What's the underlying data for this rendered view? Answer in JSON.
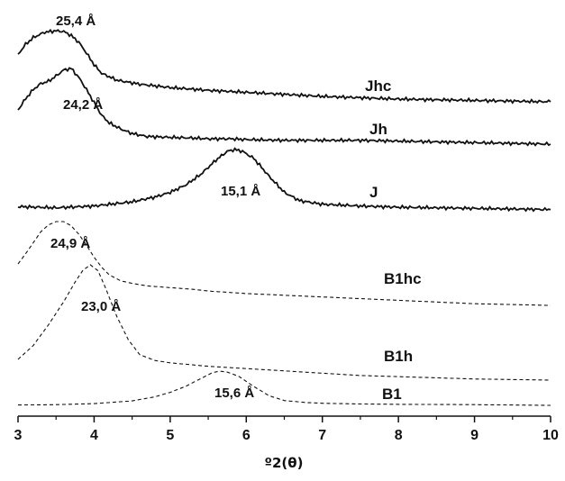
{
  "chart_data": {
    "type": "line",
    "xlabel": "º2(θ)",
    "ylabel": "",
    "xlim": [
      3,
      10
    ],
    "x_ticks": [
      3,
      4,
      5,
      6,
      7,
      8,
      9,
      10
    ],
    "y_ticks": [],
    "y_scale": "arbitrary-offset",
    "grid": false,
    "series": [
      {
        "name": "Jhc",
        "style": "solid",
        "peak_label": "25,4 Å",
        "points": [
          [
            3.0,
            0.7
          ],
          [
            3.1,
            0.85
          ],
          [
            3.2,
            0.95
          ],
          [
            3.35,
            1.03
          ],
          [
            3.5,
            1.05
          ],
          [
            3.6,
            1.04
          ],
          [
            3.7,
            0.98
          ],
          [
            3.8,
            0.88
          ],
          [
            3.9,
            0.72
          ],
          [
            4.0,
            0.55
          ],
          [
            4.1,
            0.42
          ],
          [
            4.3,
            0.32
          ],
          [
            4.6,
            0.26
          ],
          [
            5.0,
            0.21
          ],
          [
            5.5,
            0.17
          ],
          [
            6.0,
            0.14
          ],
          [
            6.5,
            0.11
          ],
          [
            7.0,
            0.08
          ],
          [
            7.5,
            0.06
          ],
          [
            8.0,
            0.04
          ],
          [
            8.5,
            0.03
          ],
          [
            9.0,
            0.02
          ],
          [
            9.5,
            0.01
          ],
          [
            10.0,
            0.0
          ]
        ]
      },
      {
        "name": "Jh",
        "style": "solid",
        "peak_label": "24,2 Å",
        "points": [
          [
            3.0,
            0.45
          ],
          [
            3.1,
            0.6
          ],
          [
            3.2,
            0.72
          ],
          [
            3.3,
            0.8
          ],
          [
            3.4,
            0.83
          ],
          [
            3.5,
            0.9
          ],
          [
            3.6,
            0.98
          ],
          [
            3.7,
            1.0
          ],
          [
            3.8,
            0.88
          ],
          [
            3.9,
            0.72
          ],
          [
            4.0,
            0.55
          ],
          [
            4.1,
            0.38
          ],
          [
            4.2,
            0.28
          ],
          [
            4.35,
            0.2
          ],
          [
            4.5,
            0.14
          ],
          [
            4.7,
            0.1
          ],
          [
            5.0,
            0.09
          ],
          [
            5.3,
            0.08
          ],
          [
            5.5,
            0.07
          ],
          [
            5.8,
            0.07
          ],
          [
            6.0,
            0.06
          ],
          [
            6.5,
            0.05
          ],
          [
            7.0,
            0.05
          ],
          [
            7.5,
            0.05
          ],
          [
            8.0,
            0.04
          ],
          [
            8.5,
            0.03
          ],
          [
            9.0,
            0.02
          ],
          [
            9.5,
            0.01
          ],
          [
            10.0,
            0.0
          ]
        ]
      },
      {
        "name": "J",
        "style": "solid",
        "peak_label": "15,1 Å",
        "points": [
          [
            3.0,
            0.04
          ],
          [
            3.5,
            0.02
          ],
          [
            4.0,
            0.05
          ],
          [
            4.5,
            0.12
          ],
          [
            4.8,
            0.2
          ],
          [
            5.0,
            0.28
          ],
          [
            5.2,
            0.4
          ],
          [
            5.4,
            0.58
          ],
          [
            5.6,
            0.82
          ],
          [
            5.75,
            0.97
          ],
          [
            5.85,
            1.0
          ],
          [
            5.95,
            0.97
          ],
          [
            6.1,
            0.85
          ],
          [
            6.3,
            0.55
          ],
          [
            6.5,
            0.28
          ],
          [
            6.7,
            0.14
          ],
          [
            7.0,
            0.08
          ],
          [
            7.5,
            0.05
          ],
          [
            8.0,
            0.03
          ],
          [
            8.5,
            0.02
          ],
          [
            9.0,
            0.01
          ],
          [
            9.5,
            0.0
          ],
          [
            10.0,
            -0.01
          ]
        ]
      },
      {
        "name": "B1hc",
        "style": "dashed",
        "peak_label": "24,9 Å",
        "points": [
          [
            3.0,
            0.5
          ],
          [
            3.1,
            0.62
          ],
          [
            3.2,
            0.75
          ],
          [
            3.3,
            0.88
          ],
          [
            3.4,
            0.96
          ],
          [
            3.5,
            1.0
          ],
          [
            3.6,
            1.0
          ],
          [
            3.7,
            0.95
          ],
          [
            3.8,
            0.85
          ],
          [
            3.9,
            0.72
          ],
          [
            4.0,
            0.58
          ],
          [
            4.1,
            0.46
          ],
          [
            4.2,
            0.37
          ],
          [
            4.35,
            0.3
          ],
          [
            4.5,
            0.27
          ],
          [
            4.7,
            0.24
          ],
          [
            5.0,
            0.22
          ],
          [
            5.3,
            0.2
          ],
          [
            5.5,
            0.18
          ],
          [
            6.0,
            0.15
          ],
          [
            6.5,
            0.13
          ],
          [
            7.0,
            0.11
          ],
          [
            7.5,
            0.09
          ],
          [
            8.0,
            0.07
          ],
          [
            8.5,
            0.05
          ],
          [
            9.0,
            0.03
          ],
          [
            9.5,
            0.02
          ],
          [
            10.0,
            0.01
          ]
        ]
      },
      {
        "name": "B1h",
        "style": "dashed",
        "peak_label": "23,0 Å",
        "points": [
          [
            3.0,
            0.18
          ],
          [
            3.2,
            0.3
          ],
          [
            3.4,
            0.48
          ],
          [
            3.6,
            0.68
          ],
          [
            3.75,
            0.85
          ],
          [
            3.85,
            0.95
          ],
          [
            3.95,
            1.0
          ],
          [
            4.05,
            0.95
          ],
          [
            4.15,
            0.8
          ],
          [
            4.3,
            0.55
          ],
          [
            4.45,
            0.35
          ],
          [
            4.6,
            0.22
          ],
          [
            4.8,
            0.17
          ],
          [
            5.0,
            0.15
          ],
          [
            5.5,
            0.12
          ],
          [
            6.0,
            0.1
          ],
          [
            6.5,
            0.08
          ],
          [
            7.0,
            0.06
          ],
          [
            7.5,
            0.04
          ],
          [
            8.0,
            0.03
          ],
          [
            8.5,
            0.02
          ],
          [
            9.0,
            0.01
          ],
          [
            10.0,
            0.0
          ]
        ]
      },
      {
        "name": "B1",
        "style": "dashed",
        "peak_label": "15,6 Å",
        "points": [
          [
            3.0,
            0.01
          ],
          [
            3.5,
            0.02
          ],
          [
            4.0,
            0.05
          ],
          [
            4.5,
            0.13
          ],
          [
            4.8,
            0.25
          ],
          [
            5.0,
            0.38
          ],
          [
            5.2,
            0.55
          ],
          [
            5.4,
            0.78
          ],
          [
            5.55,
            0.95
          ],
          [
            5.65,
            1.0
          ],
          [
            5.75,
            0.97
          ],
          [
            5.9,
            0.85
          ],
          [
            6.1,
            0.55
          ],
          [
            6.3,
            0.28
          ],
          [
            6.5,
            0.14
          ],
          [
            6.8,
            0.08
          ],
          [
            7.0,
            0.06
          ],
          [
            7.5,
            0.04
          ],
          [
            8.0,
            0.03
          ],
          [
            9.0,
            0.02
          ],
          [
            10.0,
            0.0
          ]
        ]
      }
    ]
  }
}
